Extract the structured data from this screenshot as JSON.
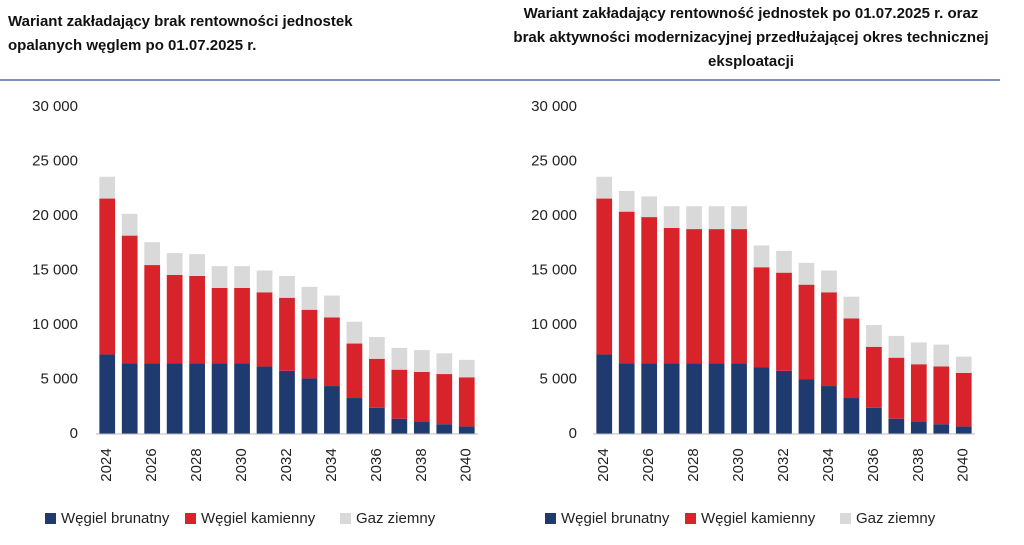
{
  "chart_data": [
    {
      "type": "stacked-bar",
      "title": "Wariant zakładający brak rentowności jednostek opalanych węglem po 01.07.2025 r.",
      "categories": [
        "2024",
        null,
        "2026",
        null,
        "2028",
        null,
        "2030",
        null,
        "2032",
        null,
        "2034",
        null,
        "2036",
        null,
        "2038",
        null,
        "2040"
      ],
      "series": [
        {
          "name": "Węgiel brunatny",
          "color": "#1f3a6e",
          "values": [
            7300,
            6500,
            6500,
            6500,
            6500,
            6500,
            6500,
            6200,
            5800,
            5100,
            4400,
            3300,
            2400,
            1400,
            1100,
            900,
            700
          ]
        },
        {
          "name": "Węgiel kamienny",
          "color": "#d9232a",
          "values": [
            14300,
            11700,
            9000,
            8100,
            8000,
            6900,
            6900,
            6800,
            6700,
            6300,
            6300,
            5000,
            4500,
            4500,
            4600,
            4600,
            4500
          ]
        },
        {
          "name": "Gaz ziemny",
          "color": "#d9d9d9",
          "values": [
            2000,
            2000,
            2100,
            2000,
            2000,
            2000,
            2000,
            2000,
            2000,
            2100,
            2000,
            2000,
            2000,
            2000,
            2000,
            1900,
            1600
          ]
        }
      ],
      "ylim": [
        0,
        30000
      ],
      "yticks": [
        0,
        {
          "value": 5000,
          "label": "5 000"
        },
        {
          "value": 10000,
          "label": "10 000"
        },
        {
          "value": 15000,
          "label": "15 000"
        },
        {
          "value": 20000,
          "label": "20 000"
        },
        {
          "value": 25000,
          "label": "25 000"
        },
        {
          "value": 30000,
          "label": "30 000"
        }
      ],
      "grid": false,
      "legend": "bottom"
    },
    {
      "type": "stacked-bar",
      "title": "Wariant zakładający rentowność jednostek po 01.07.2025 r. oraz brak aktywności modernizacyjnej przedłużającej okres technicznej eksploatacji",
      "categories": [
        "2024",
        null,
        "2026",
        null,
        "2028",
        null,
        "2030",
        null,
        "2032",
        null,
        "2034",
        null,
        "2036",
        null,
        "2038",
        null,
        "2040"
      ],
      "series": [
        {
          "name": "Węgiel brunatny",
          "color": "#1f3a6e",
          "values": [
            7300,
            6500,
            6500,
            6500,
            6500,
            6500,
            6500,
            6100,
            5800,
            5000,
            4400,
            3300,
            2400,
            1400,
            1100,
            900,
            700
          ]
        },
        {
          "name": "Węgiel kamienny",
          "color": "#d9232a",
          "values": [
            14300,
            13900,
            13400,
            12400,
            12300,
            12300,
            12300,
            9200,
            9000,
            8700,
            8600,
            7300,
            5600,
            5600,
            5300,
            5300,
            4900
          ]
        },
        {
          "name": "Gaz ziemny",
          "color": "#d9d9d9",
          "values": [
            2000,
            1900,
            1900,
            2000,
            2100,
            2100,
            2100,
            2000,
            2000,
            2000,
            2000,
            2000,
            2000,
            2000,
            2000,
            2000,
            1500
          ]
        }
      ],
      "ylim": [
        0,
        30000
      ],
      "yticks": [
        0,
        {
          "value": 5000,
          "label": "5 000"
        },
        {
          "value": 10000,
          "label": "10 000"
        },
        {
          "value": 15000,
          "label": "15 000"
        },
        {
          "value": 20000,
          "label": "20 000"
        },
        {
          "value": 25000,
          "label": "25 000"
        },
        {
          "value": 30000,
          "label": "30 000"
        }
      ],
      "grid": false,
      "legend": "bottom"
    }
  ]
}
